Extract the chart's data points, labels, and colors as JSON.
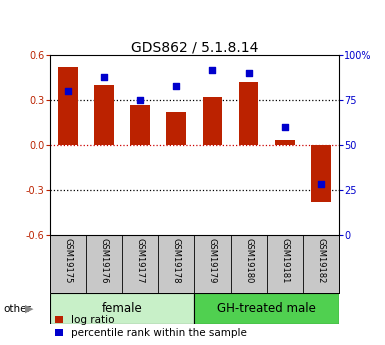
{
  "title": "GDS862 / 5.1.8.14",
  "samples": [
    "GSM19175",
    "GSM19176",
    "GSM19177",
    "GSM19178",
    "GSM19179",
    "GSM19180",
    "GSM19181",
    "GSM19182"
  ],
  "log_ratio": [
    0.52,
    0.4,
    0.27,
    0.22,
    0.32,
    0.42,
    0.03,
    -0.38
  ],
  "percentile_rank": [
    80,
    88,
    75,
    83,
    92,
    90,
    60,
    28
  ],
  "bar_color": "#bb2200",
  "dot_color": "#0000cc",
  "ylim_left": [
    -0.6,
    0.6
  ],
  "ylim_right": [
    0,
    100
  ],
  "yticks_left": [
    -0.6,
    -0.3,
    0.0,
    0.3,
    0.6
  ],
  "yticks_right": [
    0,
    25,
    50,
    75,
    100
  ],
  "ytick_labels_right": [
    "0",
    "25",
    "50",
    "75",
    "100%"
  ],
  "hlines": [
    -0.3,
    0.0,
    0.3
  ],
  "hline_colors": [
    "black",
    "#cc0000",
    "black"
  ],
  "hline_styles": [
    "dotted",
    "dotted",
    "dotted"
  ],
  "groups": [
    {
      "label": "female",
      "start": 0,
      "end": 3,
      "color": "#c8f0c8"
    },
    {
      "label": "GH-treated male",
      "start": 4,
      "end": 7,
      "color": "#50d050"
    }
  ],
  "xtick_bg": "#c8c8c8",
  "legend_bar_label": "log ratio",
  "legend_dot_label": "percentile rank within the sample",
  "other_label": "other",
  "title_fontsize": 10,
  "tick_fontsize": 7,
  "sample_fontsize": 6,
  "group_label_fontsize": 8.5,
  "legend_fontsize": 7.5
}
